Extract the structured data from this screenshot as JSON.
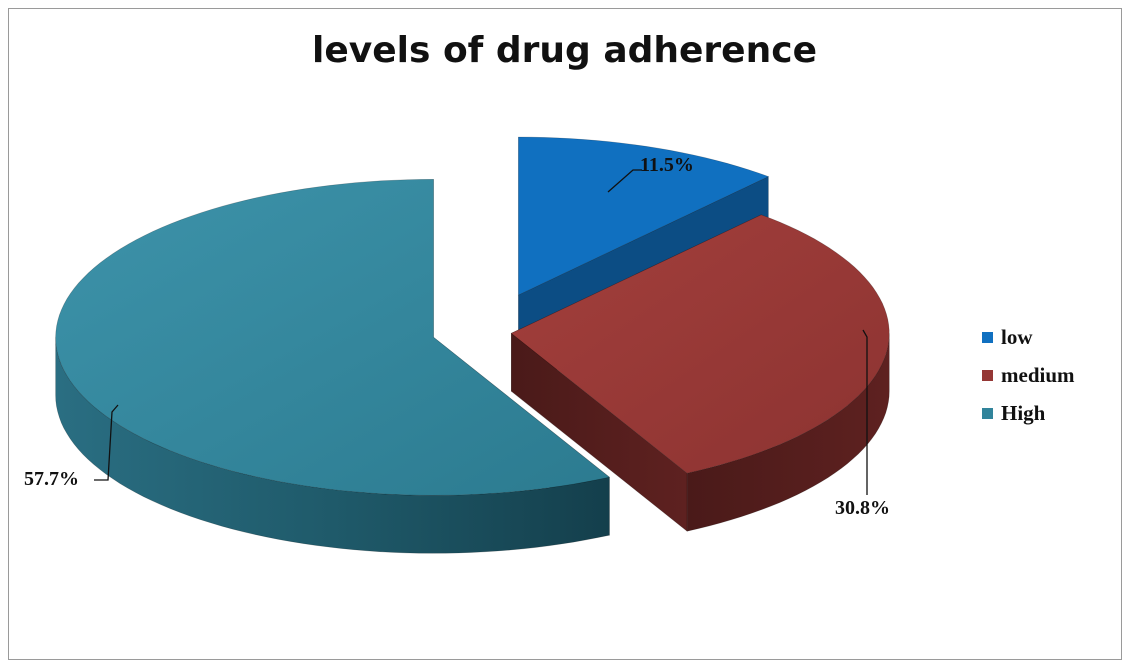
{
  "chart_data": {
    "type": "pie",
    "title": "levels of drug adherence",
    "categories": [
      "low",
      "medium",
      "High"
    ],
    "values": [
      11.5,
      30.8,
      57.7
    ],
    "data_labels": [
      "11.5%",
      "30.8%",
      "57.7%"
    ],
    "colors": {
      "low": "#1070C0",
      "medium": "#953735",
      "High": "#31849B"
    },
    "legend_position": "right",
    "style": "3d-exploded"
  }
}
